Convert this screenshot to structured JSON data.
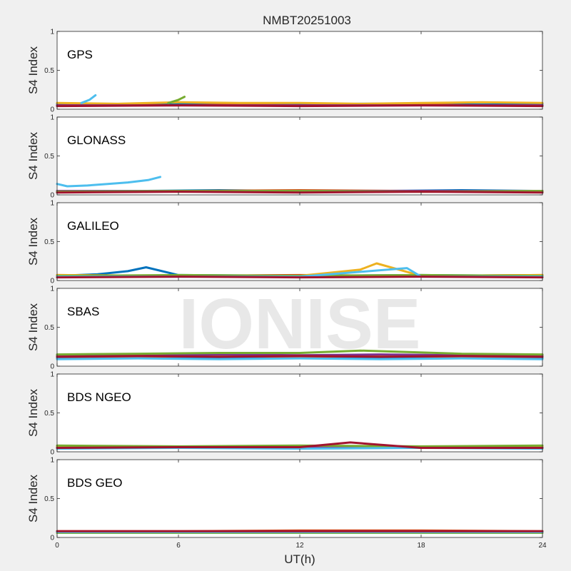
{
  "chart_data": {
    "type": "line",
    "title": "NMBT20251003",
    "xlabel": "UT(h)",
    "ylabel": "S4 Index",
    "xlim": [
      0,
      24
    ],
    "ylim": [
      0,
      1
    ],
    "x_ticks": [
      0,
      6,
      12,
      18,
      24
    ],
    "y_ticks": [
      0,
      0.5,
      1
    ],
    "watermark": "IONISE",
    "series_colors": [
      "#0072BD",
      "#D95319",
      "#EDB120",
      "#7E2F8E",
      "#77AC30",
      "#4DBEEE",
      "#A2142F"
    ],
    "panels": [
      {
        "label": "GPS",
        "series": [
          {
            "x": [
              0,
              3,
              6,
              9,
              12,
              15,
              18,
              21,
              24
            ],
            "y": [
              0.07,
              0.06,
              0.07,
              0.07,
              0.06,
              0.07,
              0.07,
              0.06,
              0.07
            ]
          },
          {
            "x": [
              0,
              3,
              6,
              9,
              12,
              15,
              18,
              21,
              24
            ],
            "y": [
              0.05,
              0.06,
              0.05,
              0.06,
              0.05,
              0.05,
              0.06,
              0.05,
              0.05
            ]
          },
          {
            "x": [
              0,
              3,
              6,
              9,
              12,
              15,
              18,
              21,
              24
            ],
            "y": [
              0.08,
              0.07,
              0.09,
              0.08,
              0.08,
              0.07,
              0.08,
              0.09,
              0.08
            ]
          },
          {
            "x": [
              0,
              24
            ],
            "y": [
              0.05,
              0.05
            ]
          },
          {
            "x": [
              5.5,
              6.0,
              6.3
            ],
            "y": [
              0.08,
              0.12,
              0.16
            ]
          },
          {
            "x": [
              1.2,
              1.6,
              1.9
            ],
            "y": [
              0.08,
              0.12,
              0.18
            ]
          },
          {
            "x": [
              0,
              6,
              12,
              18,
              24
            ],
            "y": [
              0.04,
              0.05,
              0.04,
              0.05,
              0.04
            ]
          }
        ]
      },
      {
        "label": "GLONASS",
        "series": [
          {
            "x": [
              0,
              4,
              8,
              12,
              16,
              20,
              24
            ],
            "y": [
              0.05,
              0.05,
              0.06,
              0.05,
              0.05,
              0.06,
              0.05
            ]
          },
          {
            "x": [
              0,
              6,
              12,
              18,
              24
            ],
            "y": [
              0.04,
              0.05,
              0.06,
              0.05,
              0.04
            ]
          },
          {
            "x": [
              0,
              6,
              12,
              18,
              24
            ],
            "y": [
              0.05,
              0.04,
              0.05,
              0.04,
              0.05
            ]
          },
          {
            "x": [
              0,
              8,
              16,
              24
            ],
            "y": [
              0.05,
              0.05,
              0.05,
              0.05
            ]
          },
          {
            "x": [
              0,
              6,
              12,
              18,
              24
            ],
            "y": [
              0.04,
              0.05,
              0.05,
              0.04,
              0.05
            ]
          },
          {
            "x": [
              0,
              0.5,
              1.5,
              2.5,
              3.5,
              4.5,
              5.1
            ],
            "y": [
              0.14,
              0.11,
              0.12,
              0.14,
              0.16,
              0.19,
              0.23
            ]
          },
          {
            "x": [
              0,
              6,
              12,
              18,
              24
            ],
            "y": [
              0.03,
              0.04,
              0.03,
              0.04,
              0.03
            ]
          }
        ]
      },
      {
        "label": "GALILEO",
        "series": [
          {
            "x": [
              0,
              2,
              3.5,
              4.4,
              6,
              12,
              18,
              24
            ],
            "y": [
              0.06,
              0.08,
              0.12,
              0.17,
              0.07,
              0.06,
              0.07,
              0.06
            ]
          },
          {
            "x": [
              0,
              6,
              12,
              18,
              24
            ],
            "y": [
              0.07,
              0.06,
              0.07,
              0.06,
              0.07
            ]
          },
          {
            "x": [
              0,
              6,
              12,
              15,
              15.8,
              18,
              24
            ],
            "y": [
              0.07,
              0.06,
              0.06,
              0.14,
              0.22,
              0.06,
              0.07
            ]
          },
          {
            "x": [
              0,
              6,
              12,
              18,
              24
            ],
            "y": [
              0.05,
              0.05,
              0.06,
              0.05,
              0.05
            ]
          },
          {
            "x": [
              0,
              6,
              12,
              18,
              24
            ],
            "y": [
              0.06,
              0.07,
              0.06,
              0.07,
              0.06
            ]
          },
          {
            "x": [
              0,
              6,
              12,
              17.3,
              18,
              24
            ],
            "y": [
              0.05,
              0.05,
              0.05,
              0.16,
              0.05,
              0.05
            ]
          },
          {
            "x": [
              0,
              6,
              12,
              18,
              24
            ],
            "y": [
              0.04,
              0.05,
              0.04,
              0.05,
              0.04
            ]
          }
        ]
      },
      {
        "label": "SBAS",
        "series": [
          {
            "x": [
              0,
              4,
              8,
              12,
              16,
              20,
              24
            ],
            "y": [
              0.1,
              0.11,
              0.1,
              0.11,
              0.1,
              0.11,
              0.1
            ]
          },
          {
            "x": [
              0,
              4,
              8,
              12,
              16,
              20,
              24
            ],
            "y": [
              0.12,
              0.12,
              0.13,
              0.12,
              0.13,
              0.12,
              0.12
            ]
          },
          {
            "x": [
              0,
              4,
              8,
              12,
              16,
              20,
              24
            ],
            "y": [
              0.13,
              0.14,
              0.13,
              0.14,
              0.13,
              0.14,
              0.13
            ]
          },
          {
            "x": [
              0,
              4,
              8,
              12,
              16,
              20,
              24
            ],
            "y": [
              0.14,
              0.13,
              0.15,
              0.14,
              0.15,
              0.14,
              0.14
            ]
          },
          {
            "x": [
              0,
              4,
              8,
              12,
              15,
              20,
              24
            ],
            "y": [
              0.15,
              0.16,
              0.17,
              0.17,
              0.2,
              0.16,
              0.15
            ]
          },
          {
            "x": [
              0,
              4,
              8,
              12,
              16,
              20,
              24
            ],
            "y": [
              0.09,
              0.1,
              0.09,
              0.1,
              0.09,
              0.1,
              0.09
            ]
          },
          {
            "x": [
              0,
              4,
              8,
              12,
              16,
              20,
              24
            ],
            "y": [
              0.12,
              0.13,
              0.12,
              0.13,
              0.12,
              0.13,
              0.12
            ]
          }
        ]
      },
      {
        "label": "BDS NGEO",
        "series": [
          {
            "x": [
              0,
              6,
              12,
              18,
              24
            ],
            "y": [
              0.06,
              0.05,
              0.06,
              0.05,
              0.06
            ]
          },
          {
            "x": [
              0,
              6,
              12,
              18,
              24
            ],
            "y": [
              0.05,
              0.06,
              0.05,
              0.06,
              0.05
            ]
          },
          {
            "x": [
              0,
              6,
              12,
              18,
              24
            ],
            "y": [
              0.07,
              0.06,
              0.07,
              0.06,
              0.07
            ]
          },
          {
            "x": [
              0,
              6,
              12,
              18,
              24
            ],
            "y": [
              0.05,
              0.05,
              0.06,
              0.05,
              0.05
            ]
          },
          {
            "x": [
              0,
              6,
              12,
              18,
              24
            ],
            "y": [
              0.08,
              0.07,
              0.08,
              0.07,
              0.08
            ]
          },
          {
            "x": [
              0,
              6,
              12,
              18,
              24
            ],
            "y": [
              0.04,
              0.05,
              0.04,
              0.05,
              0.04
            ]
          },
          {
            "x": [
              0,
              6,
              12,
              14.5,
              18,
              24
            ],
            "y": [
              0.05,
              0.06,
              0.06,
              0.12,
              0.05,
              0.05
            ]
          }
        ]
      },
      {
        "label": "BDS GEO",
        "series": [
          {
            "x": [
              0,
              24
            ],
            "y": [
              0.07,
              0.07
            ]
          },
          {
            "x": [
              0,
              6,
              12,
              18,
              24
            ],
            "y": [
              0.08,
              0.08,
              0.09,
              0.09,
              0.08
            ]
          },
          {
            "x": [
              0,
              6,
              12,
              18,
              24
            ],
            "y": [
              0.06,
              0.06,
              0.07,
              0.06,
              0.06
            ]
          },
          {
            "x": [
              0,
              24
            ],
            "y": [
              0.07,
              0.07
            ]
          },
          {
            "x": [
              0,
              24
            ],
            "y": [
              0.06,
              0.06
            ]
          },
          {
            "x": [
              0,
              24
            ],
            "y": [
              0.07,
              0.07
            ]
          },
          {
            "x": [
              0,
              24
            ],
            "y": [
              0.08,
              0.08
            ]
          }
        ]
      }
    ]
  }
}
